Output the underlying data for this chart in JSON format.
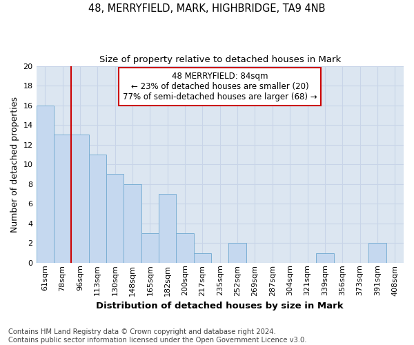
{
  "title1": "48, MERRYFIELD, MARK, HIGHBRIDGE, TA9 4NB",
  "title2": "Size of property relative to detached houses in Mark",
  "xlabel": "Distribution of detached houses by size in Mark",
  "ylabel": "Number of detached properties",
  "footnote1": "Contains HM Land Registry data © Crown copyright and database right 2024.",
  "footnote2": "Contains public sector information licensed under the Open Government Licence v3.0.",
  "annotation_line1": "48 MERRYFIELD: 84sqm",
  "annotation_line2": "← 23% of detached houses are smaller (20)",
  "annotation_line3": "77% of semi-detached houses are larger (68) →",
  "bar_labels": [
    "61sqm",
    "78sqm",
    "96sqm",
    "113sqm",
    "130sqm",
    "148sqm",
    "165sqm",
    "182sqm",
    "200sqm",
    "217sqm",
    "235sqm",
    "252sqm",
    "269sqm",
    "287sqm",
    "304sqm",
    "321sqm",
    "339sqm",
    "356sqm",
    "373sqm",
    "391sqm",
    "408sqm"
  ],
  "bar_values": [
    16,
    13,
    13,
    11,
    9,
    8,
    3,
    7,
    3,
    1,
    0,
    2,
    0,
    0,
    0,
    0,
    1,
    0,
    0,
    2,
    0
  ],
  "bar_color": "#c5d8ef",
  "bar_edge_color": "#7bafd4",
  "vline_x_index": 1.5,
  "vline_color": "#cc0000",
  "annotation_box_color": "#ffffff",
  "annotation_box_edge": "#cc0000",
  "ylim": [
    0,
    20
  ],
  "yticks": [
    0,
    2,
    4,
    6,
    8,
    10,
    12,
    14,
    16,
    18,
    20
  ],
  "grid_color": "#c8d4e8",
  "bg_color": "#dce6f1",
  "title1_fontsize": 10.5,
  "title2_fontsize": 9.5,
  "xlabel_fontsize": 9.5,
  "ylabel_fontsize": 9,
  "tick_fontsize": 8,
  "footnote_fontsize": 7.2,
  "annotation_fontsize": 8.5
}
